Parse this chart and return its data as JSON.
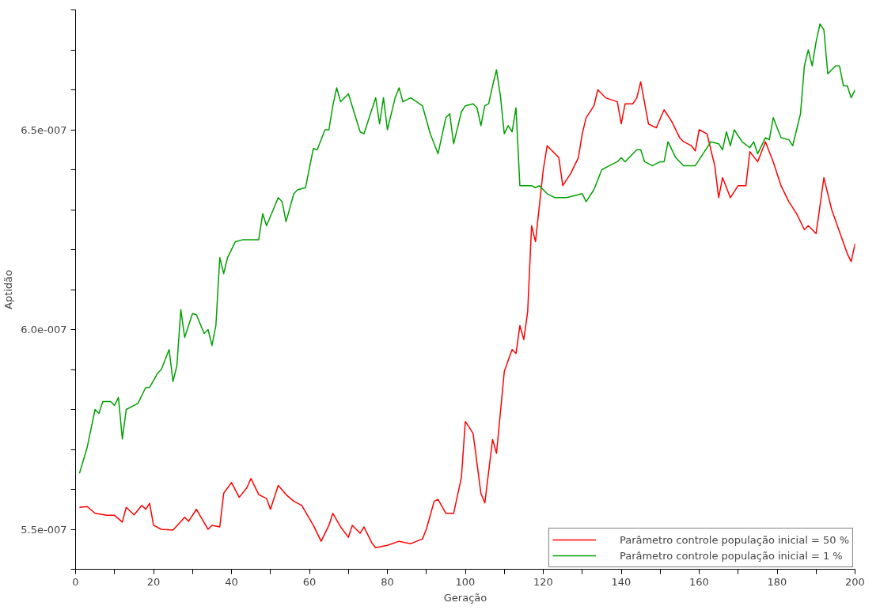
{
  "chart_data": {
    "type": "line",
    "xlabel": "Geração",
    "ylabel": "Aptidão",
    "xlim": [
      0,
      200
    ],
    "ylim": [
      5.4e-07,
      6.8e-07
    ],
    "xticks": [
      0,
      {
        "value": 10,
        "label": null
      },
      20,
      {
        "value": 30,
        "label": null
      },
      40,
      {
        "value": 50,
        "label": null
      },
      60,
      {
        "value": 70,
        "label": null
      },
      80,
      {
        "value": 90,
        "label": null
      },
      100,
      {
        "value": 110,
        "label": null
      },
      120,
      {
        "value": 130,
        "label": null
      },
      140,
      {
        "value": 150,
        "label": null
      },
      160,
      {
        "value": 170,
        "label": null
      },
      180,
      {
        "value": 190,
        "label": null
      },
      200
    ],
    "yticks": [
      {
        "value": 5.4e-07,
        "label": null
      },
      {
        "value": 5.5e-07,
        "label": "5.5e-007"
      },
      {
        "value": 5.6e-07,
        "label": null
      },
      {
        "value": 5.7e-07,
        "label": null
      },
      {
        "value": 5.8e-07,
        "label": null
      },
      {
        "value": 5.9e-07,
        "label": null
      },
      {
        "value": 6e-07,
        "label": "6.0e-007"
      },
      {
        "value": 6.1e-07,
        "label": null
      },
      {
        "value": 6.2e-07,
        "label": null
      },
      {
        "value": 6.3e-07,
        "label": null
      },
      {
        "value": 6.4e-07,
        "label": null
      },
      {
        "value": 6.5e-07,
        "label": "6.5e-007"
      },
      {
        "value": 6.6e-07,
        "label": null
      },
      {
        "value": 6.7e-07,
        "label": null
      },
      {
        "value": 6.8e-07,
        "label": null
      }
    ],
    "grid": false,
    "legend": "bottom right",
    "marker": "none",
    "line_style": "solid",
    "series": [
      {
        "name": "Parâmetro controle população inicial = 50 %",
        "color": "#ff0000",
        "x": [
          1,
          3,
          5,
          8,
          10,
          12,
          13,
          15,
          17,
          18,
          19,
          20,
          22,
          25,
          28,
          29,
          31,
          34,
          35,
          37,
          38,
          40,
          42,
          44,
          45,
          47,
          49,
          50,
          52,
          54,
          56,
          58,
          61,
          63,
          65,
          66,
          68,
          70,
          71,
          73,
          74,
          76,
          77,
          80,
          83,
          86,
          89,
          90,
          92,
          93,
          95,
          97,
          99,
          100,
          102,
          104,
          105,
          107,
          108,
          110,
          112,
          113,
          114,
          115,
          116,
          117,
          118,
          120,
          121,
          124,
          125,
          127,
          129,
          130,
          131,
          133,
          134,
          136,
          139,
          140,
          141,
          143,
          144,
          145,
          147,
          149,
          151,
          153,
          155,
          156,
          158,
          159,
          160,
          162,
          164,
          165,
          166,
          168,
          170,
          172,
          173,
          175,
          177,
          179,
          181,
          183,
          185,
          187,
          188,
          190,
          192,
          194,
          196,
          198,
          199,
          200
        ],
        "values": [
          5.555e-07,
          5.557e-07,
          5.54e-07,
          5.535e-07,
          5.535e-07,
          5.518e-07,
          5.555e-07,
          5.536e-07,
          5.56e-07,
          5.55e-07,
          5.565e-07,
          5.51e-07,
          5.5e-07,
          5.498e-07,
          5.53e-07,
          5.52e-07,
          5.55e-07,
          5.5e-07,
          5.51e-07,
          5.506e-07,
          5.59e-07,
          5.617e-07,
          5.58e-07,
          5.605e-07,
          5.627e-07,
          5.587e-07,
          5.577e-07,
          5.55e-07,
          5.61e-07,
          5.587e-07,
          5.57e-07,
          5.56e-07,
          5.51e-07,
          5.47e-07,
          5.51e-07,
          5.54e-07,
          5.506e-07,
          5.48e-07,
          5.51e-07,
          5.49e-07,
          5.506e-07,
          5.466e-07,
          5.454e-07,
          5.46e-07,
          5.47e-07,
          5.464e-07,
          5.476e-07,
          5.5e-07,
          5.57e-07,
          5.575e-07,
          5.54e-07,
          5.54e-07,
          5.63e-07,
          5.77e-07,
          5.74e-07,
          5.59e-07,
          5.566e-07,
          5.725e-07,
          5.69e-07,
          5.895e-07,
          5.95e-07,
          5.94e-07,
          6.01e-07,
          5.975e-07,
          6.045e-07,
          6.26e-07,
          6.22e-07,
          6.4e-07,
          6.46e-07,
          6.43e-07,
          6.36e-07,
          6.39e-07,
          6.43e-07,
          6.49e-07,
          6.53e-07,
          6.56e-07,
          6.6e-07,
          6.58e-07,
          6.57e-07,
          6.515e-07,
          6.565e-07,
          6.565e-07,
          6.58e-07,
          6.62e-07,
          6.514e-07,
          6.505e-07,
          6.55e-07,
          6.52e-07,
          6.48e-07,
          6.47e-07,
          6.46e-07,
          6.447e-07,
          6.5e-07,
          6.49e-07,
          6.41e-07,
          6.33e-07,
          6.38e-07,
          6.33e-07,
          6.36e-07,
          6.36e-07,
          6.445e-07,
          6.42e-07,
          6.47e-07,
          6.42e-07,
          6.36e-07,
          6.32e-07,
          6.29e-07,
          6.25e-07,
          6.26e-07,
          6.24e-07,
          6.38e-07,
          6.3e-07,
          6.245e-07,
          6.19e-07,
          6.17e-07,
          6.215e-07
        ]
      },
      {
        "name": "Parâmetro controle população inicial = 1 %",
        "color": "#00a000",
        "x": [
          1,
          3,
          5,
          6,
          7,
          9,
          10,
          11,
          12,
          13,
          16,
          18,
          19,
          21,
          22,
          24,
          25,
          26,
          27,
          28,
          30,
          31,
          33,
          34,
          35,
          36,
          37,
          38,
          39,
          41,
          43,
          47,
          48,
          49,
          52,
          53,
          54,
          56,
          57,
          59,
          61,
          62,
          64,
          65,
          66,
          67,
          68,
          70,
          73,
          74,
          77,
          78,
          79,
          80,
          82,
          83,
          84,
          86,
          89,
          91,
          93,
          95,
          96,
          97,
          99,
          100,
          102,
          103,
          104,
          105,
          106,
          107,
          108,
          109,
          110,
          111,
          112,
          113,
          114,
          117,
          118,
          119,
          121,
          123,
          126,
          128,
          130,
          131,
          133,
          135,
          137,
          139,
          140,
          141,
          144,
          145,
          146,
          148,
          150,
          151,
          152,
          154,
          156,
          158,
          159,
          161,
          163,
          165,
          166,
          167,
          168,
          169,
          171,
          173,
          174,
          175,
          177,
          178,
          179,
          181,
          183,
          184,
          186,
          187,
          188,
          189,
          190,
          191,
          192,
          193,
          195,
          196,
          197,
          198,
          199,
          200
        ],
        "values": [
          5.64e-07,
          5.706e-07,
          5.8e-07,
          5.79e-07,
          5.82e-07,
          5.82e-07,
          5.81e-07,
          5.83e-07,
          5.726e-07,
          5.8e-07,
          5.815e-07,
          5.855e-07,
          5.855e-07,
          5.89e-07,
          5.9e-07,
          5.95e-07,
          5.87e-07,
          5.91e-07,
          6.05e-07,
          5.98e-07,
          6.04e-07,
          6.037e-07,
          5.99e-07,
          6e-07,
          5.96e-07,
          6.01e-07,
          6.18e-07,
          6.14e-07,
          6.18e-07,
          6.22e-07,
          6.225e-07,
          6.225e-07,
          6.29e-07,
          6.26e-07,
          6.33e-07,
          6.32e-07,
          6.27e-07,
          6.34e-07,
          6.35e-07,
          6.355e-07,
          6.453e-07,
          6.45e-07,
          6.5e-07,
          6.5e-07,
          6.56e-07,
          6.605e-07,
          6.57e-07,
          6.59e-07,
          6.495e-07,
          6.49e-07,
          6.58e-07,
          6.515e-07,
          6.58e-07,
          6.5e-07,
          6.58e-07,
          6.605e-07,
          6.57e-07,
          6.58e-07,
          6.56e-07,
          6.49e-07,
          6.44e-07,
          6.53e-07,
          6.54e-07,
          6.465e-07,
          6.545e-07,
          6.56e-07,
          6.565e-07,
          6.555e-07,
          6.51e-07,
          6.56e-07,
          6.565e-07,
          6.61e-07,
          6.65e-07,
          6.585e-07,
          6.49e-07,
          6.51e-07,
          6.495e-07,
          6.555e-07,
          6.36e-07,
          6.36e-07,
          6.355e-07,
          6.36e-07,
          6.34e-07,
          6.33e-07,
          6.33e-07,
          6.335e-07,
          6.34e-07,
          6.32e-07,
          6.35e-07,
          6.4e-07,
          6.41e-07,
          6.42e-07,
          6.43e-07,
          6.42e-07,
          6.45e-07,
          6.45e-07,
          6.42e-07,
          6.41e-07,
          6.42e-07,
          6.42e-07,
          6.47e-07,
          6.43e-07,
          6.41e-07,
          6.41e-07,
          6.41e-07,
          6.44e-07,
          6.47e-07,
          6.465e-07,
          6.45e-07,
          6.495e-07,
          6.46e-07,
          6.5e-07,
          6.47e-07,
          6.455e-07,
          6.47e-07,
          6.44e-07,
          6.48e-07,
          6.475e-07,
          6.53e-07,
          6.48e-07,
          6.475e-07,
          6.46e-07,
          6.54e-07,
          6.66e-07,
          6.7e-07,
          6.66e-07,
          6.72e-07,
          6.765e-07,
          6.75e-07,
          6.64e-07,
          6.66e-07,
          6.66e-07,
          6.61e-07,
          6.61e-07,
          6.58e-07,
          6.6e-07
        ]
      }
    ]
  }
}
